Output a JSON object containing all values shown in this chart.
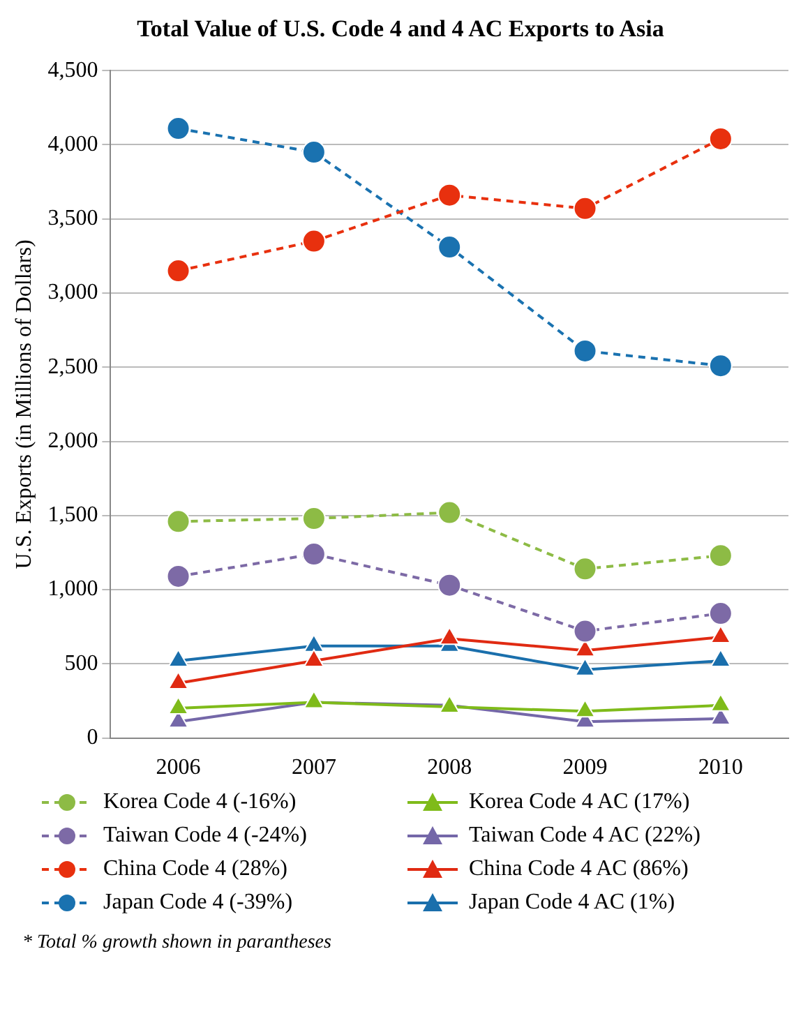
{
  "chart_data": {
    "type": "line",
    "title": "Total Value of U.S. Code 4 and 4 AC Exports to Asia",
    "ylabel": "U.S. Exports (in Millions of Dollars)",
    "categories": [
      "2006",
      "2007",
      "2008",
      "2009",
      "2010"
    ],
    "ylim": [
      0,
      4500
    ],
    "yticks": [
      {
        "value": 0,
        "label": "0"
      },
      {
        "value": 500,
        "label": "500"
      },
      {
        "value": 1000,
        "label": "1,000"
      },
      {
        "value": 1500,
        "label": "1,500"
      },
      {
        "value": 2000,
        "label": "2,000"
      },
      {
        "value": 2500,
        "label": "2,500"
      },
      {
        "value": 3000,
        "label": "3,000"
      },
      {
        "value": 3500,
        "label": "3,500"
      },
      {
        "value": 4000,
        "label": "4,000"
      },
      {
        "value": 4500,
        "label": "4,500"
      }
    ],
    "grid": "y",
    "legend": "bottom",
    "series": [
      {
        "name": "Korea Code 4 (-16%)",
        "color": "#8dbb45",
        "marker": "circle",
        "line_style": "dashed",
        "values": [
          1460,
          1480,
          1520,
          1140,
          1230
        ]
      },
      {
        "name": "Korea Code 4 AC (17%)",
        "color": "#7fbb1a",
        "marker": "triangle",
        "line_style": "solid",
        "values": [
          200,
          240,
          210,
          180,
          220
        ]
      },
      {
        "name": "Taiwan Code 4 (-24%)",
        "color": "#7d6aa6",
        "marker": "circle",
        "line_style": "dashed",
        "values": [
          1090,
          1240,
          1030,
          720,
          840
        ]
      },
      {
        "name": "Taiwan Code 4 AC (22%)",
        "color": "#7467a8",
        "marker": "triangle",
        "line_style": "solid",
        "values": [
          110,
          240,
          220,
          110,
          130
        ]
      },
      {
        "name": "China Code 4 (28%)",
        "color": "#e8300e",
        "marker": "circle",
        "line_style": "dashed",
        "values": [
          3150,
          3350,
          3660,
          3570,
          4040
        ]
      },
      {
        "name": "China Code 4 AC (86%)",
        "color": "#e02a12",
        "marker": "triangle",
        "line_style": "solid",
        "values": [
          370,
          520,
          670,
          590,
          680
        ]
      },
      {
        "name": "Japan Code 4 (-39%)",
        "color": "#1a72b0",
        "marker": "circle",
        "line_style": "dashed",
        "values": [
          4110,
          3950,
          3310,
          2610,
          2510
        ]
      },
      {
        "name": "Japan Code 4 AC (1%)",
        "color": "#1a6fac",
        "marker": "triangle",
        "line_style": "solid",
        "values": [
          520,
          620,
          620,
          460,
          520
        ]
      }
    ],
    "annotations": [
      "* Total % growth shown in parantheses"
    ]
  }
}
